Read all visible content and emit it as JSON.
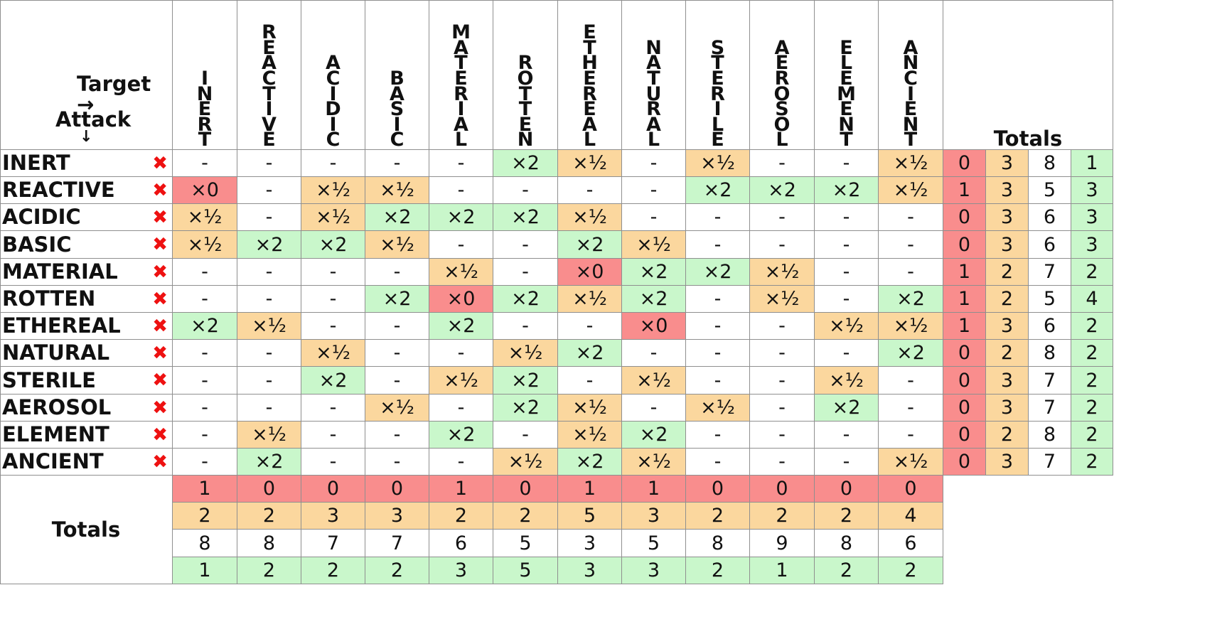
{
  "corner": {
    "target_label": "Target →",
    "attack_label": "Attack",
    "attack_arrow": "↓"
  },
  "right_totals_label": "Totals",
  "bottom_totals_label": "Totals",
  "row_icon": "red-x-icon",
  "types": [
    "INERT",
    "REACTIVE",
    "ACIDIC",
    "BASIC",
    "MATERIAL",
    "ROTTEN",
    "ETHEREAL",
    "NATURAL",
    "STERILE",
    "AEROSOL",
    "ELEMENT",
    "ANCIENT"
  ],
  "matrix": [
    [
      "-",
      "-",
      "-",
      "-",
      "-",
      "×2",
      "×½",
      "-",
      "×½",
      "-",
      "-",
      "×½"
    ],
    [
      "×0",
      "-",
      "×½",
      "×½",
      "-",
      "-",
      "-",
      "-",
      "×2",
      "×2",
      "×2",
      "×½"
    ],
    [
      "×½",
      "-",
      "×½",
      "×2",
      "×2",
      "×2",
      "×½",
      "-",
      "-",
      "-",
      "-",
      "-"
    ],
    [
      "×½",
      "×2",
      "×2",
      "×½",
      "-",
      "-",
      "×2",
      "×½",
      "-",
      "-",
      "-",
      "-"
    ],
    [
      "-",
      "-",
      "-",
      "-",
      "×½",
      "-",
      "×0",
      "×2",
      "×2",
      "×½",
      "-",
      "-"
    ],
    [
      "-",
      "-",
      "-",
      "×2",
      "×0",
      "×2",
      "×½",
      "×2",
      "-",
      "×½",
      "-",
      "×2"
    ],
    [
      "×2",
      "×½",
      "-",
      "-",
      "×2",
      "-",
      "-",
      "×0",
      "-",
      "-",
      "×½",
      "×½"
    ],
    [
      "-",
      "-",
      "×½",
      "-",
      "-",
      "×½",
      "×2",
      "-",
      "-",
      "-",
      "-",
      "×2"
    ],
    [
      "-",
      "-",
      "×2",
      "-",
      "×½",
      "×2",
      "-",
      "×½",
      "-",
      "-",
      "×½",
      "-"
    ],
    [
      "-",
      "-",
      "-",
      "×½",
      "-",
      "×2",
      "×½",
      "-",
      "×½",
      "-",
      "×2",
      "-"
    ],
    [
      "-",
      "×½",
      "-",
      "-",
      "×2",
      "-",
      "×½",
      "×2",
      "-",
      "-",
      "-",
      "-"
    ],
    [
      "-",
      "×2",
      "-",
      "-",
      "-",
      "×½",
      "×2",
      "×½",
      "-",
      "-",
      "-",
      "×½"
    ]
  ],
  "row_totals": [
    [
      "0",
      "3",
      "8",
      "1"
    ],
    [
      "1",
      "3",
      "5",
      "3"
    ],
    [
      "0",
      "3",
      "6",
      "3"
    ],
    [
      "0",
      "3",
      "6",
      "3"
    ],
    [
      "1",
      "2",
      "7",
      "2"
    ],
    [
      "1",
      "2",
      "5",
      "4"
    ],
    [
      "1",
      "3",
      "6",
      "2"
    ],
    [
      "0",
      "2",
      "8",
      "2"
    ],
    [
      "0",
      "3",
      "7",
      "2"
    ],
    [
      "0",
      "3",
      "7",
      "2"
    ],
    [
      "0",
      "2",
      "8",
      "2"
    ],
    [
      "0",
      "3",
      "7",
      "2"
    ]
  ],
  "col_totals": [
    [
      "1",
      "0",
      "0",
      "0",
      "1",
      "0",
      "1",
      "1",
      "0",
      "0",
      "0",
      "0"
    ],
    [
      "2",
      "2",
      "3",
      "3",
      "2",
      "2",
      "5",
      "3",
      "2",
      "2",
      "2",
      "4"
    ],
    [
      "8",
      "8",
      "7",
      "7",
      "6",
      "5",
      "3",
      "5",
      "8",
      "9",
      "8",
      "6"
    ],
    [
      "1",
      "2",
      "2",
      "2",
      "3",
      "5",
      "3",
      "3",
      "2",
      "1",
      "2",
      "2"
    ]
  ],
  "colors": {
    "immune": "#f98d8d",
    "resist": "#fbd79e",
    "neutral": "#ffffff",
    "super": "#c9f7cb",
    "x_mark": "#ee1111"
  }
}
